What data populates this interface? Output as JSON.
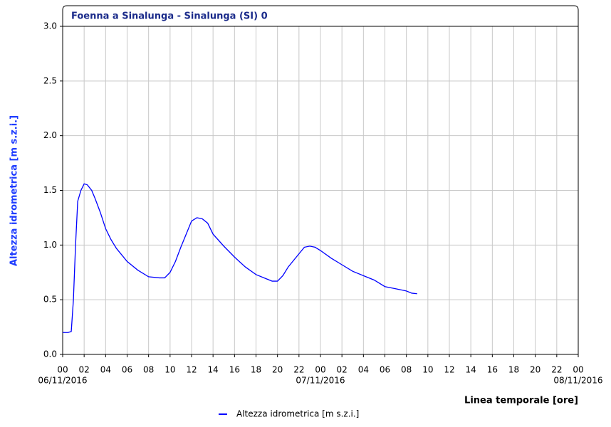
{
  "chart_data": {
    "type": "line",
    "title": "Foenna a Sinalunga - Sinalunga (SI) 0",
    "ylabel": "Altezza idrometrica [m s.z.i.]",
    "xlabel": "Linea temporale [ore]",
    "x": [
      0,
      0.5,
      0.8,
      1.0,
      1.2,
      1.4,
      1.7,
      2.0,
      2.3,
      2.7,
      3.0,
      3.5,
      4.0,
      4.5,
      5,
      6,
      7,
      8,
      9,
      9.5,
      10,
      10.5,
      11,
      11.5,
      12,
      12.5,
      13,
      13.5,
      14,
      15,
      16,
      17,
      18,
      19,
      19.5,
      20,
      20.5,
      21,
      22,
      22.5,
      23,
      23.5,
      24,
      25,
      26,
      27,
      28,
      29,
      30,
      31,
      32,
      32.5,
      33
    ],
    "series": [
      {
        "name": "Altezza idrometrica [m s.z.i.]",
        "color": "#0000ff",
        "values": [
          0.2,
          0.2,
          0.21,
          0.5,
          1.0,
          1.4,
          1.5,
          1.56,
          1.55,
          1.5,
          1.43,
          1.3,
          1.15,
          1.05,
          0.97,
          0.85,
          0.77,
          0.71,
          0.7,
          0.7,
          0.75,
          0.85,
          0.98,
          1.1,
          1.22,
          1.25,
          1.24,
          1.2,
          1.1,
          0.99,
          0.89,
          0.8,
          0.73,
          0.69,
          0.67,
          0.67,
          0.72,
          0.8,
          0.92,
          0.98,
          0.99,
          0.98,
          0.95,
          0.88,
          0.82,
          0.76,
          0.72,
          0.68,
          0.62,
          0.6,
          0.58,
          0.56,
          0.555
        ]
      }
    ],
    "xlim": [
      0,
      48
    ],
    "ylim": [
      0,
      3
    ],
    "yticks": [
      {
        "value": 0,
        "label": "0.0"
      },
      0.5,
      {
        "value": 1,
        "label": "1.0"
      },
      1.5,
      {
        "value": 2,
        "label": "2.0"
      },
      2.5,
      {
        "value": 3,
        "label": "3.0"
      }
    ],
    "xticks": [
      {
        "value": 0,
        "label": "00"
      },
      {
        "value": 2,
        "label": "02"
      },
      {
        "value": 4,
        "label": "04"
      },
      {
        "value": 6,
        "label": "06"
      },
      {
        "value": 8,
        "label": "08"
      },
      10,
      12,
      14,
      16,
      18,
      20,
      22,
      {
        "value": 24,
        "label": "00"
      },
      {
        "value": 26,
        "label": "02"
      },
      {
        "value": 28,
        "label": "04"
      },
      {
        "value": 30,
        "label": "06"
      },
      {
        "value": 32,
        "label": "08"
      },
      {
        "value": 34,
        "label": "10"
      },
      {
        "value": 36,
        "label": "12"
      },
      {
        "value": 38,
        "label": "14"
      },
      {
        "value": 40,
        "label": "16"
      },
      {
        "value": 42,
        "label": "18"
      },
      {
        "value": 44,
        "label": "20"
      },
      {
        "value": 46,
        "label": "22"
      },
      {
        "value": 48,
        "label": "00"
      }
    ],
    "x_date_ticks": [
      {
        "value": 0,
        "label": "06/11/2016"
      },
      {
        "value": 24,
        "label": "07/11/2016"
      },
      {
        "value": 48,
        "label": "08/11/2016"
      }
    ],
    "grid": true
  }
}
